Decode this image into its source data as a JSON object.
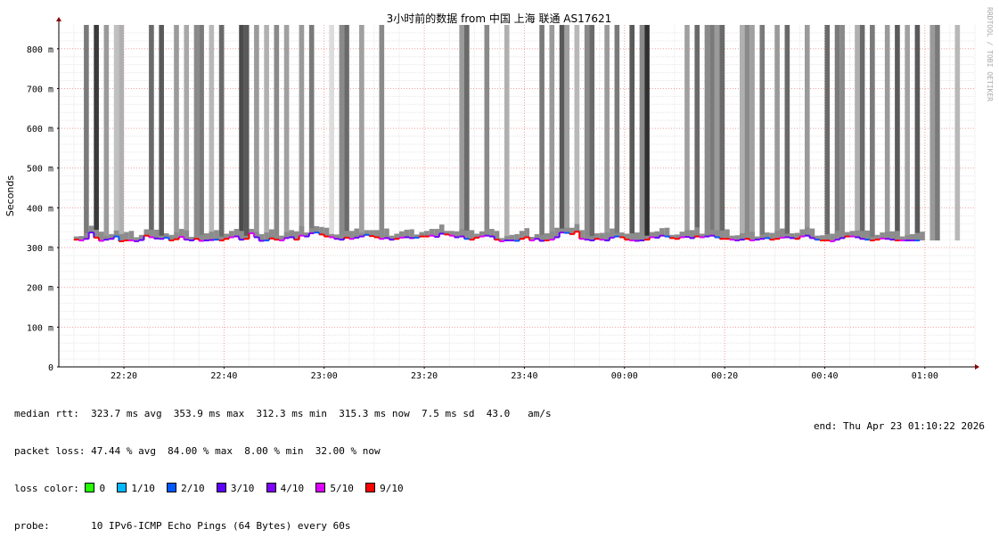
{
  "title": "3小时前的数据 from 中国 上海 联通 AS17621",
  "watermark": "RRDTOOL / TOBI OETIKER",
  "chart_data": {
    "type": "area",
    "title": "3小时前的数据 from 中国 上海 联通 AS17621",
    "ylabel": "Seconds",
    "ylim_ms": [
      0,
      860
    ],
    "y_ticks": [
      {
        "v": 0,
        "label": "0"
      },
      {
        "v": 100,
        "label": "100 m"
      },
      {
        "v": 200,
        "label": "200 m"
      },
      {
        "v": 300,
        "label": "300 m"
      },
      {
        "v": 400,
        "label": "400 m"
      },
      {
        "v": 500,
        "label": "500 m"
      },
      {
        "v": 600,
        "label": "600 m"
      },
      {
        "v": 700,
        "label": "700 m"
      },
      {
        "v": 800,
        "label": "800 m"
      }
    ],
    "x_range_minutes_from_2210": [
      -3,
      180
    ],
    "x_ticks": [
      {
        "t": 10,
        "label": "22:20"
      },
      {
        "t": 30,
        "label": "22:40"
      },
      {
        "t": 50,
        "label": "23:00"
      },
      {
        "t": 70,
        "label": "23:20"
      },
      {
        "t": 90,
        "label": "23:40"
      },
      {
        "t": 110,
        "label": "00:00"
      },
      {
        "t": 130,
        "label": "00:20"
      },
      {
        "t": 150,
        "label": "00:40"
      },
      {
        "t": 170,
        "label": "01:00"
      }
    ],
    "grid": true,
    "smoke_full_height": [
      {
        "t": 2,
        "shade": "#7a7a7a"
      },
      {
        "t": 4,
        "shade": "#3a3a3a"
      },
      {
        "t": 6,
        "shade": "#9a9a9a"
      },
      {
        "t": 8,
        "shade": "#c0c0c0"
      },
      {
        "t": 9,
        "shade": "#b0b0b0"
      },
      {
        "t": 15,
        "shade": "#6a6a6a"
      },
      {
        "t": 17,
        "shade": "#5a5a5a"
      },
      {
        "t": 20,
        "shade": "#9a9a9a"
      },
      {
        "t": 22,
        "shade": "#a8a8a8"
      },
      {
        "t": 24,
        "shade": "#8a8a8a"
      },
      {
        "t": 25,
        "shade": "#7a7a7a"
      },
      {
        "t": 27,
        "shade": "#b8b8b8"
      },
      {
        "t": 29,
        "shade": "#6a6a6a"
      },
      {
        "t": 33,
        "shade": "#4a4a4a"
      },
      {
        "t": 34,
        "shade": "#5a5a5a"
      },
      {
        "t": 36,
        "shade": "#9a9a9a"
      },
      {
        "t": 38,
        "shade": "#b0b0b0"
      },
      {
        "t": 40,
        "shade": "#8a8a8a"
      },
      {
        "t": 42,
        "shade": "#a0a0a0"
      },
      {
        "t": 45,
        "shade": "#9a9a9a"
      },
      {
        "t": 47,
        "shade": "#7a7a7a"
      },
      {
        "t": 51,
        "shade": "#dcdcdc"
      },
      {
        "t": 53,
        "shade": "#8a8a8a"
      },
      {
        "t": 54,
        "shade": "#6a6a6a"
      },
      {
        "t": 57,
        "shade": "#a0a0a0"
      },
      {
        "t": 61,
        "shade": "#8a8a8a"
      },
      {
        "t": 77,
        "shade": "#9a9a9a"
      },
      {
        "t": 78,
        "shade": "#6a6a6a"
      },
      {
        "t": 82,
        "shade": "#8a8a8a"
      },
      {
        "t": 86,
        "shade": "#b0b0b0"
      },
      {
        "t": 93,
        "shade": "#7a7a7a"
      },
      {
        "t": 95,
        "shade": "#9a9a9a"
      },
      {
        "t": 97,
        "shade": "#5a5a5a"
      },
      {
        "t": 98,
        "shade": "#a0a0a0"
      },
      {
        "t": 100,
        "shade": "#b8b8b8"
      },
      {
        "t": 102,
        "shade": "#8a8a8a"
      },
      {
        "t": 103,
        "shade": "#6a6a6a"
      },
      {
        "t": 106,
        "shade": "#9a9a9a"
      },
      {
        "t": 108,
        "shade": "#7a7a7a"
      },
      {
        "t": 111,
        "shade": "#5a5a5a"
      },
      {
        "t": 113,
        "shade": "#8a8a8a"
      },
      {
        "t": 114,
        "shade": "#303030"
      },
      {
        "t": 122,
        "shade": "#a0a0a0"
      },
      {
        "t": 124,
        "shade": "#6a6a6a"
      },
      {
        "t": 126,
        "shade": "#8a8a8a"
      },
      {
        "t": 127,
        "shade": "#7a7a7a"
      },
      {
        "t": 128,
        "shade": "#9a9a9a"
      },
      {
        "t": 129,
        "shade": "#6a6a6a"
      },
      {
        "t": 133,
        "shade": "#b0b0b0"
      },
      {
        "t": 134,
        "shade": "#8a8a8a"
      },
      {
        "t": 135,
        "shade": "#a0a0a0"
      },
      {
        "t": 137,
        "shade": "#7a7a7a"
      },
      {
        "t": 140,
        "shade": "#9a9a9a"
      },
      {
        "t": 142,
        "shade": "#6a6a6a"
      },
      {
        "t": 146,
        "shade": "#9a9a9a"
      },
      {
        "t": 150,
        "shade": "#6a6a6a"
      },
      {
        "t": 152,
        "shade": "#7a7a7a"
      },
      {
        "t": 153,
        "shade": "#8a8a8a"
      },
      {
        "t": 156,
        "shade": "#b0b0b0"
      },
      {
        "t": 157,
        "shade": "#6a6a6a"
      },
      {
        "t": 159,
        "shade": "#7a7a7a"
      },
      {
        "t": 162,
        "shade": "#9a9a9a"
      },
      {
        "t": 164,
        "shade": "#5a5a5a"
      },
      {
        "t": 166,
        "shade": "#a0a0a0"
      },
      {
        "t": 168,
        "shade": "#5a5a5a"
      },
      {
        "t": 171,
        "shade": "#9a9a9a"
      },
      {
        "t": 172,
        "shade": "#7a7a7a"
      },
      {
        "t": 176,
        "shade": "#b8b8b8"
      }
    ],
    "median_ms": [
      320,
      318,
      322,
      338,
      325,
      317,
      320,
      322,
      328,
      316,
      318,
      318,
      316,
      319,
      330,
      326,
      323,
      322,
      325,
      318,
      321,
      327,
      320,
      318,
      322,
      317,
      318,
      319,
      320,
      318,
      322,
      326,
      328,
      320,
      322,
      336,
      326,
      317,
      318,
      323,
      320,
      318,
      324,
      326,
      320,
      330,
      328,
      336,
      338,
      333,
      328,
      326,
      322,
      320,
      325,
      322,
      325,
      328,
      332,
      329,
      326,
      322,
      324,
      320,
      322,
      325,
      326,
      324,
      325,
      328,
      328,
      330,
      327,
      335,
      333,
      330,
      326,
      328,
      322,
      320,
      325,
      328,
      330,
      328,
      320,
      316,
      318,
      318,
      317,
      322,
      326,
      318,
      322,
      317,
      318,
      320,
      326,
      338,
      337,
      334,
      340,
      322,
      320,
      318,
      322,
      320,
      318,
      325,
      328,
      326,
      320,
      318,
      317,
      318,
      320,
      326,
      325,
      330,
      328,
      324,
      322,
      326,
      327,
      324,
      328,
      326,
      328,
      330,
      326,
      322,
      322,
      320,
      318,
      320,
      322,
      318,
      320,
      322,
      324,
      320,
      322,
      325,
      326,
      324,
      322,
      328,
      330,
      324,
      320,
      318,
      318,
      316,
      320,
      324,
      328,
      328,
      326,
      322,
      320,
      318,
      320,
      323,
      322,
      320,
      318,
      318,
      318,
      318,
      318,
      318
    ]
  },
  "stats": {
    "median_rtt": "median rtt:  323.7 ms avg  353.9 ms max  312.3 ms min  315.3 ms now  7.5 ms sd  43.0   am/s",
    "packet_loss": "packet loss: 47.44 % avg  84.00 % max  8.00 % min  32.00 % now",
    "loss_color_label": "loss color:",
    "probe": "probe:       10 IPv6-ICMP Echo Pings (64 Bytes) every 60s",
    "end": "end: Thu Apr 23 01:10:22 2026"
  },
  "loss_colors": [
    {
      "label": "0",
      "color": "#26ff00"
    },
    {
      "label": "1/10",
      "color": "#00b8ff"
    },
    {
      "label": "2/10",
      "color": "#0059ff"
    },
    {
      "label": "3/10",
      "color": "#5e00ff"
    },
    {
      "label": "4/10",
      "color": "#7e00ff"
    },
    {
      "label": "5/10",
      "color": "#dd00ff"
    },
    {
      "label": "9/10",
      "color": "#ff0000"
    }
  ]
}
